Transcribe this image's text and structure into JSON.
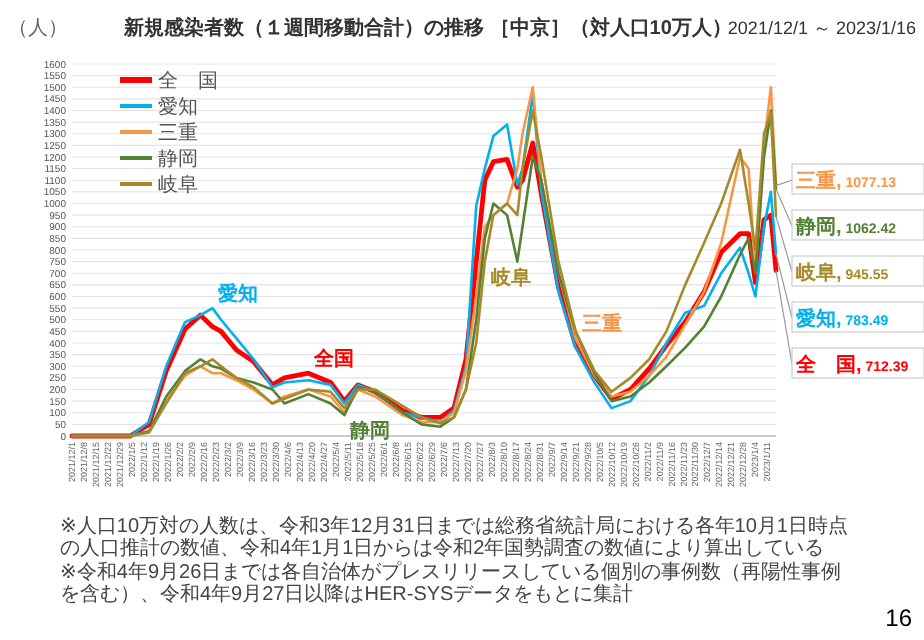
{
  "chart_data": {
    "type": "line",
    "title": "新規感染者数（１週間移動合計）の推移 ［中京］（対人口10万人）",
    "subtitle": "2021/12/1 ～ 2023/1/16",
    "ylabel": "（人）",
    "x": [
      "2021-12-01",
      "2022-01-04",
      "2022-01-15",
      "2022-01-25",
      "2022-02-05",
      "2022-02-14",
      "2022-02-21",
      "2022-02-26",
      "2022-03-07",
      "2022-03-17",
      "2022-03-28",
      "2022-04-04",
      "2022-04-18",
      "2022-05-01",
      "2022-05-09",
      "2022-05-17",
      "2022-05-27",
      "2022-06-12",
      "2022-06-23",
      "2022-07-04",
      "2022-07-12",
      "2022-07-19",
      "2022-07-25",
      "2022-07-30",
      "2022-08-04",
      "2022-08-12",
      "2022-08-18",
      "2022-08-21",
      "2022-08-27",
      "2022-09-01",
      "2022-09-11",
      "2022-09-21",
      "2022-10-02",
      "2022-10-12",
      "2022-10-23",
      "2022-11-03",
      "2022-11-13",
      "2022-11-24",
      "2022-12-05",
      "2022-12-15",
      "2022-12-26",
      "2022-12-31",
      "2023-01-04",
      "2023-01-09",
      "2023-01-13",
      "2023-01-16"
    ],
    "series": [
      {
        "name": "全　国",
        "color": "#ff0000",
        "values": [
          0,
          0,
          50,
          280,
          460,
          520,
          470,
          450,
          370,
          320,
          220,
          250,
          270,
          230,
          150,
          220,
          190,
          110,
          80,
          80,
          120,
          330,
          750,
          1100,
          1180,
          1190,
          1070,
          1100,
          1260,
          1040,
          640,
          390,
          260,
          160,
          200,
          290,
          390,
          490,
          620,
          790,
          870,
          870,
          660,
          930,
          950,
          712.39
        ]
      },
      {
        "name": "愛知",
        "color": "#00b0f0",
        "values": [
          0,
          0,
          60,
          300,
          490,
          520,
          550,
          500,
          420,
          330,
          210,
          230,
          240,
          220,
          140,
          220,
          190,
          100,
          80,
          60,
          110,
          300,
          990,
          1150,
          1290,
          1340,
          1080,
          1150,
          1470,
          1050,
          620,
          380,
          230,
          120,
          150,
          260,
          400,
          530,
          560,
          700,
          810,
          700,
          600,
          900,
          1050,
          783.49
        ]
      },
      {
        "name": "三重",
        "color": "#f79646",
        "values": [
          0,
          0,
          20,
          150,
          260,
          300,
          270,
          270,
          240,
          200,
          140,
          170,
          200,
          170,
          100,
          200,
          170,
          90,
          60,
          60,
          100,
          280,
          600,
          900,
          950,
          1000,
          1150,
          1300,
          1500,
          1100,
          700,
          420,
          260,
          170,
          190,
          260,
          340,
          480,
          620,
          830,
          1200,
          1150,
          700,
          1250,
          1500,
          1077.13
        ]
      },
      {
        "name": "静岡",
        "color": "#548235",
        "values": [
          0,
          0,
          20,
          170,
          280,
          330,
          300,
          290,
          250,
          230,
          200,
          140,
          180,
          140,
          90,
          210,
          190,
          100,
          50,
          40,
          80,
          200,
          500,
          850,
          1000,
          950,
          750,
          900,
          1200,
          1100,
          700,
          450,
          270,
          150,
          170,
          230,
          300,
          380,
          470,
          600,
          780,
          850,
          700,
          1200,
          1400,
          1062.42
        ]
      },
      {
        "name": "岐阜",
        "color": "#a68a2a",
        "values": [
          0,
          0,
          15,
          140,
          270,
          300,
          330,
          300,
          250,
          210,
          140,
          160,
          200,
          190,
          120,
          200,
          200,
          130,
          80,
          55,
          80,
          200,
          400,
          750,
          950,
          1000,
          950,
          1150,
          1400,
          1200,
          750,
          450,
          280,
          190,
          250,
          330,
          450,
          650,
          830,
          1000,
          1231,
          1000,
          800,
          1300,
          1390,
          945.55
        ]
      }
    ],
    "xlim": [
      "2021-12-01",
      "2023-01-16"
    ],
    "xticks": [
      {
        "value": "2021-12-01",
        "label": "2021/12/1"
      },
      {
        "value": "2021-12-08",
        "label": "2021/12/8"
      },
      {
        "value": "2021-12-15",
        "label": "2021/12/15"
      },
      {
        "value": "2021-12-22",
        "label": "2021/12/22"
      },
      {
        "value": "2021-12-29",
        "label": "2021/12/29"
      },
      {
        "value": "2022-01-05",
        "label": "2022/1/5"
      },
      {
        "value": "2022-01-12",
        "label": "2022/1/12"
      },
      {
        "value": "2022-01-19",
        "label": "2022/1/19"
      },
      {
        "value": "2022-01-26",
        "label": "2022/1/26"
      },
      {
        "value": "2022-02-02",
        "label": "2022/2/2"
      },
      {
        "value": "2022-02-09",
        "label": "2022/2/9"
      },
      {
        "value": "2022-02-16",
        "label": "2022/2/16"
      },
      {
        "value": "2022-02-23",
        "label": "2022/2/23"
      },
      {
        "value": "2022-03-02",
        "label": "2022/3/2"
      },
      {
        "value": "2022-03-09",
        "label": "2022/3/9"
      },
      {
        "value": "2022-03-16",
        "label": "2022/3/16"
      },
      {
        "value": "2022-03-23",
        "label": "2022/3/23"
      },
      {
        "value": "2022-03-30",
        "label": "2022/3/30"
      },
      {
        "value": "2022-04-06",
        "label": "2022/4/6"
      },
      {
        "value": "2022-04-13",
        "label": "2022/4/13"
      },
      {
        "value": "2022-04-20",
        "label": "2022/4/20"
      },
      {
        "value": "2022-04-27",
        "label": "2022/4/27"
      },
      {
        "value": "2022-05-04",
        "label": "2022/5/4"
      },
      {
        "value": "2022-05-11",
        "label": "2022/5/11"
      },
      {
        "value": "2022-05-18",
        "label": "2022/5/18"
      },
      {
        "value": "2022-05-25",
        "label": "2022/5/25"
      },
      {
        "value": "2022-06-01",
        "label": "2022/6/1"
      },
      {
        "value": "2022-06-08",
        "label": "2022/6/8"
      },
      {
        "value": "2022-06-15",
        "label": "2022/6/15"
      },
      {
        "value": "2022-06-22",
        "label": "2022/6/22"
      },
      {
        "value": "2022-06-29",
        "label": "2022/6/29"
      },
      {
        "value": "2022-07-06",
        "label": "2022/7/6"
      },
      {
        "value": "2022-07-13",
        "label": "2022/7/13"
      },
      {
        "value": "2022-07-20",
        "label": "2022/7/20"
      },
      {
        "value": "2022-07-27",
        "label": "2022/7/27"
      },
      {
        "value": "2022-08-03",
        "label": "2022/8/3"
      },
      {
        "value": "2022-08-10",
        "label": "2022/8/10"
      },
      {
        "value": "2022-08-17",
        "label": "2022/8/17"
      },
      {
        "value": "2022-08-24",
        "label": "2022/8/24"
      },
      {
        "value": "2022-08-31",
        "label": "2022/8/31"
      },
      {
        "value": "2022-09-07",
        "label": "2022/9/7"
      },
      {
        "value": "2022-09-14",
        "label": "2022/9/14"
      },
      {
        "value": "2022-09-21",
        "label": "2022/9/21"
      },
      {
        "value": "2022-09-28",
        "label": "2022/9/28"
      },
      {
        "value": "2022-10-05",
        "label": "2022/10/5"
      },
      {
        "value": "2022-10-12",
        "label": "2022/10/12"
      },
      {
        "value": "2022-10-19",
        "label": "2022/10/19"
      },
      {
        "value": "2022-10-26",
        "label": "2022/10/26"
      },
      {
        "value": "2022-11-02",
        "label": "2022/11/2"
      },
      {
        "value": "2022-11-09",
        "label": "2022/11/9"
      },
      {
        "value": "2022-11-16",
        "label": "2022/11/16"
      },
      {
        "value": "2022-11-23",
        "label": "2022/11/23"
      },
      {
        "value": "2022-11-30",
        "label": "2022/11/30"
      },
      {
        "value": "2022-12-07",
        "label": "2022/12/7"
      },
      {
        "value": "2022-12-14",
        "label": "2022/12/14"
      },
      {
        "value": "2022-12-21",
        "label": "2022/12/21"
      },
      {
        "value": "2022-12-28",
        "label": "2022/12/28"
      },
      {
        "value": "2023-01-04",
        "label": "2023/1/4"
      },
      {
        "value": "2023-01-11",
        "label": "2023/1/11"
      }
    ],
    "ylim": [
      0,
      1600
    ],
    "yticks": [
      0,
      50,
      100,
      150,
      200,
      250,
      300,
      350,
      400,
      450,
      500,
      550,
      600,
      650,
      700,
      750,
      800,
      850,
      900,
      950,
      1000,
      1050,
      1100,
      1150,
      1200,
      1250,
      1300,
      1350,
      1400,
      1450,
      1500,
      1550,
      1600
    ],
    "grid": "y",
    "legend": "top left",
    "marker": "none",
    "line_style": "solid",
    "annotations": [
      {
        "text": "愛知",
        "x": "2022-02-21",
        "y": 550
      },
      {
        "text": "全国",
        "x": "2022-04-18",
        "y": 270
      },
      {
        "text": "静岡",
        "x": "2022-05-09",
        "y": 90
      },
      {
        "text": "岐阜",
        "x": "2022-07-30",
        "y": 750
      },
      {
        "text": "三重",
        "x": "2022-09-21",
        "y": 420
      },
      {
        "text": "三重, 1077.13",
        "x": "2023-01-16",
        "y": 1077.13
      },
      {
        "text": "静岡, 1062.42",
        "x": "2023-01-16",
        "y": 1062.42
      },
      {
        "text": "岐阜, 945.55",
        "x": "2023-01-16",
        "y": 945.55
      },
      {
        "text": "愛知, 783.49",
        "x": "2023-01-16",
        "y": 783.49
      },
      {
        "text": "全　国, 712.39",
        "x": "2023-01-16",
        "y": 712.39
      },
      "※人口10万対の人数は、令和3年12月31日までは総務省統計局における各年10月1日時点の人口推計の数値、令和4年1月1日からは令和2年国勢調査の数値により算出している",
      "※令和4年9月26日までは各自治体がプレスリリースしている個別の事例数（再陽性事例を含む）、令和4年9月27日以降はHER-SYSデータをもとに集計",
      "16"
    ]
  }
}
